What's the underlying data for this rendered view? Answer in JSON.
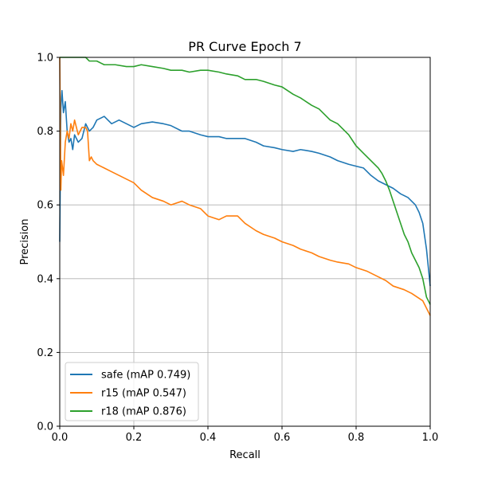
{
  "chart_data": {
    "type": "line",
    "title": "PR Curve Epoch 7",
    "xlabel": "Recall",
    "ylabel": "Precision",
    "xlim": [
      0,
      1
    ],
    "ylim": [
      0,
      1
    ],
    "xticks": [
      0.0,
      0.2,
      0.4,
      0.6,
      0.8,
      1.0
    ],
    "yticks": [
      0.0,
      0.2,
      0.4,
      0.6,
      0.8,
      1.0
    ],
    "xtick_labels": [
      "0.0",
      "0.2",
      "0.4",
      "0.6",
      "0.8",
      "1.0"
    ],
    "ytick_labels": [
      "0.0",
      "0.2",
      "0.4",
      "0.6",
      "0.8",
      "1.0"
    ],
    "grid": true,
    "legend_position": "lower-left",
    "series": [
      {
        "name": "safe (mAP 0.749)",
        "color": "#1f77b4",
        "x": [
          0.0,
          0.003,
          0.006,
          0.01,
          0.015,
          0.02,
          0.025,
          0.03,
          0.035,
          0.04,
          0.05,
          0.06,
          0.07,
          0.08,
          0.09,
          0.1,
          0.12,
          0.14,
          0.16,
          0.18,
          0.2,
          0.22,
          0.25,
          0.28,
          0.3,
          0.33,
          0.35,
          0.38,
          0.4,
          0.43,
          0.45,
          0.48,
          0.5,
          0.53,
          0.55,
          0.58,
          0.6,
          0.63,
          0.65,
          0.68,
          0.7,
          0.73,
          0.75,
          0.78,
          0.8,
          0.82,
          0.84,
          0.86,
          0.88,
          0.9,
          0.92,
          0.94,
          0.96,
          0.97,
          0.98,
          0.99,
          1.0
        ],
        "y": [
          0.5,
          0.86,
          0.91,
          0.85,
          0.88,
          0.8,
          0.77,
          0.78,
          0.75,
          0.79,
          0.77,
          0.78,
          0.82,
          0.8,
          0.81,
          0.83,
          0.84,
          0.82,
          0.83,
          0.82,
          0.81,
          0.82,
          0.825,
          0.82,
          0.815,
          0.8,
          0.8,
          0.79,
          0.785,
          0.785,
          0.78,
          0.78,
          0.78,
          0.77,
          0.76,
          0.755,
          0.75,
          0.745,
          0.75,
          0.745,
          0.74,
          0.73,
          0.72,
          0.71,
          0.705,
          0.7,
          0.68,
          0.665,
          0.655,
          0.645,
          0.63,
          0.62,
          0.6,
          0.58,
          0.55,
          0.48,
          0.38
        ]
      },
      {
        "name": "r15 (mAP 0.547)",
        "color": "#ff7f0e",
        "x": [
          0.0,
          0.003,
          0.005,
          0.01,
          0.015,
          0.02,
          0.025,
          0.03,
          0.035,
          0.04,
          0.05,
          0.06,
          0.07,
          0.075,
          0.08,
          0.085,
          0.09,
          0.1,
          0.12,
          0.14,
          0.16,
          0.18,
          0.2,
          0.22,
          0.25,
          0.28,
          0.3,
          0.33,
          0.35,
          0.38,
          0.4,
          0.43,
          0.45,
          0.48,
          0.5,
          0.53,
          0.55,
          0.58,
          0.6,
          0.63,
          0.65,
          0.68,
          0.7,
          0.73,
          0.75,
          0.78,
          0.8,
          0.83,
          0.85,
          0.88,
          0.9,
          0.93,
          0.95,
          0.98,
          1.0
        ],
        "y": [
          1.0,
          0.64,
          0.72,
          0.68,
          0.77,
          0.8,
          0.78,
          0.82,
          0.8,
          0.83,
          0.79,
          0.81,
          0.81,
          0.8,
          0.72,
          0.73,
          0.72,
          0.71,
          0.7,
          0.69,
          0.68,
          0.67,
          0.66,
          0.64,
          0.62,
          0.61,
          0.6,
          0.61,
          0.6,
          0.59,
          0.57,
          0.56,
          0.57,
          0.57,
          0.55,
          0.53,
          0.52,
          0.51,
          0.5,
          0.49,
          0.48,
          0.47,
          0.46,
          0.45,
          0.445,
          0.44,
          0.43,
          0.42,
          0.41,
          0.395,
          0.38,
          0.37,
          0.36,
          0.34,
          0.3
        ]
      },
      {
        "name": "r18 (mAP 0.876)",
        "color": "#2ca02c",
        "x": [
          0.0,
          0.005,
          0.01,
          0.02,
          0.03,
          0.04,
          0.05,
          0.06,
          0.07,
          0.08,
          0.1,
          0.12,
          0.15,
          0.18,
          0.2,
          0.22,
          0.25,
          0.28,
          0.3,
          0.33,
          0.35,
          0.38,
          0.4,
          0.43,
          0.45,
          0.48,
          0.5,
          0.53,
          0.55,
          0.58,
          0.6,
          0.63,
          0.65,
          0.68,
          0.7,
          0.73,
          0.75,
          0.78,
          0.8,
          0.82,
          0.84,
          0.85,
          0.86,
          0.87,
          0.88,
          0.89,
          0.9,
          0.91,
          0.92,
          0.93,
          0.94,
          0.95,
          0.96,
          0.97,
          0.98,
          0.99,
          1.0
        ],
        "y": [
          1.0,
          1.0,
          1.0,
          1.0,
          1.0,
          1.0,
          1.0,
          1.0,
          1.0,
          0.99,
          0.99,
          0.98,
          0.98,
          0.975,
          0.975,
          0.98,
          0.975,
          0.97,
          0.965,
          0.965,
          0.96,
          0.965,
          0.965,
          0.96,
          0.955,
          0.95,
          0.94,
          0.94,
          0.935,
          0.925,
          0.92,
          0.9,
          0.89,
          0.87,
          0.86,
          0.83,
          0.82,
          0.79,
          0.76,
          0.74,
          0.72,
          0.71,
          0.7,
          0.685,
          0.665,
          0.64,
          0.61,
          0.58,
          0.55,
          0.52,
          0.5,
          0.47,
          0.45,
          0.43,
          0.4,
          0.35,
          0.33
        ]
      }
    ]
  }
}
